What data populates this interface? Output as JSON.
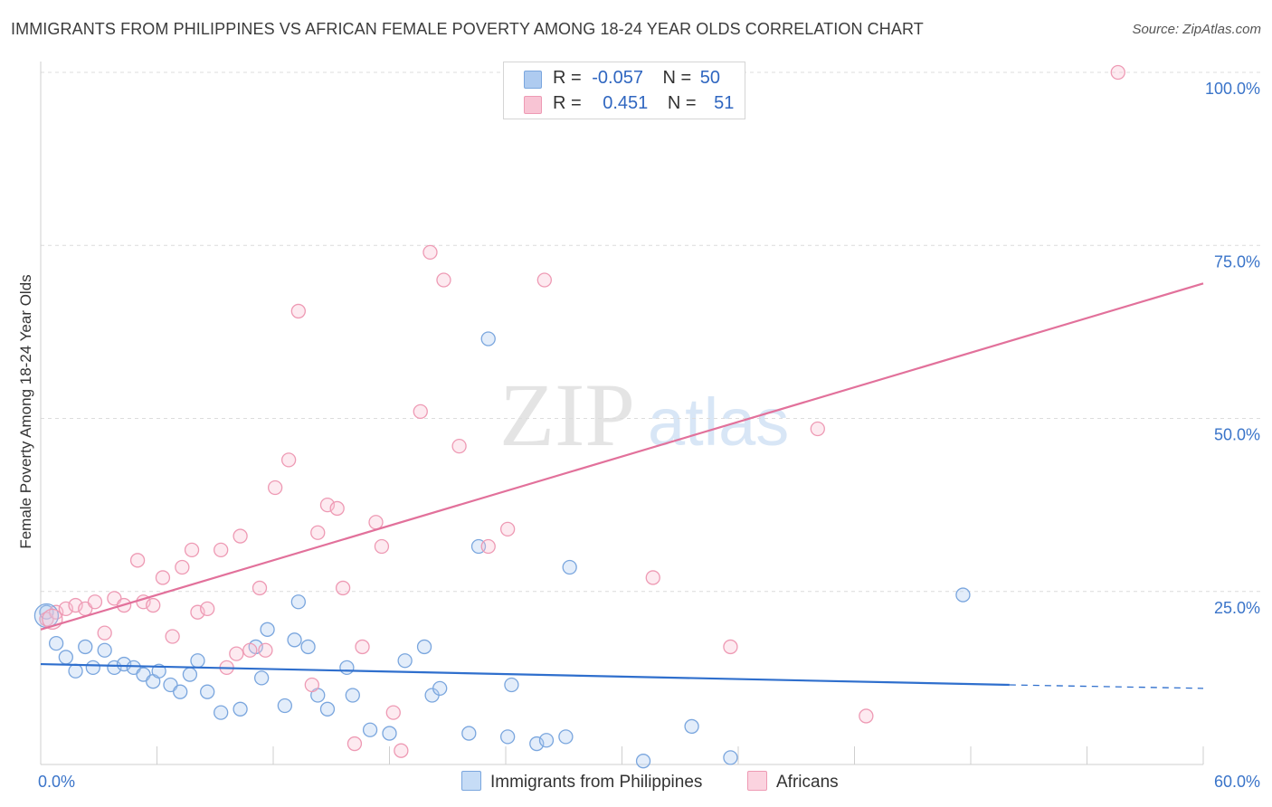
{
  "title": "IMMIGRANTS FROM PHILIPPINES VS AFRICAN FEMALE POVERTY AMONG 18-24 YEAR OLDS CORRELATION CHART",
  "source": "Source: ZipAtlas.com",
  "watermark": {
    "zip": "ZIP",
    "atlas": "atlas"
  },
  "legend": {
    "rows": [
      {
        "r_label": "R =",
        "r_value": "-0.057",
        "n_label": "N =",
        "n_value": "50",
        "color": "#aecbf0",
        "border": "#7aa6de"
      },
      {
        "r_label": "R =",
        "r_value": "0.451",
        "n_label": "N =",
        "n_value": "51",
        "color": "#f8c4d4",
        "border": "#ee9ab4"
      }
    ]
  },
  "bottom_legend": [
    {
      "label": "Immigrants from Philippines",
      "color": "#c6dcf6",
      "border": "#7aa6de"
    },
    {
      "label": "Africans",
      "color": "#fbd3df",
      "border": "#ee9ab4"
    }
  ],
  "chart_data": {
    "type": "scatter",
    "ylabel": "Female Poverty Among 18-24 Year Olds",
    "xlabel": "",
    "xlim": [
      0,
      60
    ],
    "ylim": [
      0,
      100
    ],
    "x_tick_labels": [
      "0.0%",
      "60.0%"
    ],
    "y_tick_labels": [
      "25.0%",
      "50.0%",
      "75.0%",
      "100.0%"
    ],
    "y_ticks": [
      25,
      50,
      75,
      100
    ],
    "grid": true,
    "colors": {
      "blue": "#2f6fcd",
      "pink": "#e2719b",
      "blue_point": "#7aa6de",
      "pink_point": "#ee9ab4",
      "tick_label": "#3a74c9"
    },
    "series": [
      {
        "name": "Immigrants from Philippines",
        "points": [
          [
            0.3,
            22.0
          ],
          [
            0.8,
            17.5
          ],
          [
            1.3,
            15.5
          ],
          [
            1.8,
            13.5
          ],
          [
            2.3,
            17.0
          ],
          [
            2.7,
            14.0
          ],
          [
            3.3,
            16.5
          ],
          [
            3.8,
            14.0
          ],
          [
            4.3,
            14.5
          ],
          [
            4.8,
            14.0
          ],
          [
            5.3,
            13.0
          ],
          [
            5.8,
            12.0
          ],
          [
            6.1,
            13.5
          ],
          [
            6.7,
            11.5
          ],
          [
            7.2,
            10.5
          ],
          [
            7.7,
            13.0
          ],
          [
            8.1,
            15.0
          ],
          [
            8.6,
            10.5
          ],
          [
            9.3,
            7.5
          ],
          [
            10.3,
            8.0
          ],
          [
            11.1,
            17.0
          ],
          [
            11.4,
            12.5
          ],
          [
            11.7,
            19.5
          ],
          [
            12.6,
            8.5
          ],
          [
            13.1,
            18.0
          ],
          [
            13.3,
            23.5
          ],
          [
            13.8,
            17.0
          ],
          [
            14.3,
            10.0
          ],
          [
            14.8,
            8.0
          ],
          [
            15.8,
            14.0
          ],
          [
            16.1,
            10.0
          ],
          [
            17.0,
            5.0
          ],
          [
            18.0,
            4.5
          ],
          [
            18.8,
            15.0
          ],
          [
            19.8,
            17.0
          ],
          [
            20.2,
            10.0
          ],
          [
            20.6,
            11.0
          ],
          [
            22.1,
            4.5
          ],
          [
            22.6,
            31.5
          ],
          [
            23.1,
            61.5
          ],
          [
            24.1,
            4.0
          ],
          [
            24.3,
            11.5
          ],
          [
            25.6,
            3.0
          ],
          [
            26.1,
            3.5
          ],
          [
            27.1,
            4.0
          ],
          [
            27.3,
            28.5
          ],
          [
            31.1,
            0.5
          ],
          [
            33.6,
            5.5
          ],
          [
            35.6,
            1.0
          ],
          [
            47.6,
            24.5
          ]
        ],
        "trend": {
          "x0": 0,
          "y0": 14.5,
          "x1": 50,
          "y1": 11.5,
          "dash_x1": 60,
          "dash_y1": 11.0
        }
      },
      {
        "name": "Africans",
        "points": [
          [
            0.3,
            21.0
          ],
          [
            0.8,
            22.0
          ],
          [
            1.3,
            22.5
          ],
          [
            1.8,
            23.0
          ],
          [
            2.3,
            22.5
          ],
          [
            2.8,
            23.5
          ],
          [
            3.3,
            19.0
          ],
          [
            3.8,
            24.0
          ],
          [
            4.3,
            23.0
          ],
          [
            5.0,
            29.5
          ],
          [
            5.3,
            23.5
          ],
          [
            5.8,
            23.0
          ],
          [
            6.3,
            27.0
          ],
          [
            6.8,
            18.5
          ],
          [
            7.3,
            28.5
          ],
          [
            7.8,
            31.0
          ],
          [
            8.1,
            22.0
          ],
          [
            8.6,
            22.5
          ],
          [
            9.3,
            31.0
          ],
          [
            9.6,
            14.0
          ],
          [
            10.1,
            16.0
          ],
          [
            10.3,
            33.0
          ],
          [
            10.8,
            16.5
          ],
          [
            11.3,
            25.5
          ],
          [
            11.6,
            16.5
          ],
          [
            12.1,
            40.0
          ],
          [
            12.8,
            44.0
          ],
          [
            13.3,
            65.5
          ],
          [
            14.0,
            11.5
          ],
          [
            14.3,
            33.5
          ],
          [
            14.8,
            37.5
          ],
          [
            15.3,
            37.0
          ],
          [
            15.6,
            25.5
          ],
          [
            16.2,
            3.0
          ],
          [
            16.6,
            17.0
          ],
          [
            17.3,
            35.0
          ],
          [
            17.6,
            31.5
          ],
          [
            18.2,
            7.5
          ],
          [
            18.6,
            2.0
          ],
          [
            19.6,
            51.0
          ],
          [
            20.1,
            74.0
          ],
          [
            20.8,
            70.0
          ],
          [
            21.6,
            46.0
          ],
          [
            23.1,
            31.5
          ],
          [
            24.1,
            34.0
          ],
          [
            26.0,
            70.0
          ],
          [
            31.6,
            27.0
          ],
          [
            35.6,
            17.0
          ],
          [
            40.1,
            48.5
          ],
          [
            42.6,
            7.0
          ],
          [
            55.6,
            100.0
          ]
        ],
        "trend": {
          "x0": 0,
          "y0": 19.5,
          "x1": 60,
          "y1": 69.5
        }
      }
    ]
  }
}
